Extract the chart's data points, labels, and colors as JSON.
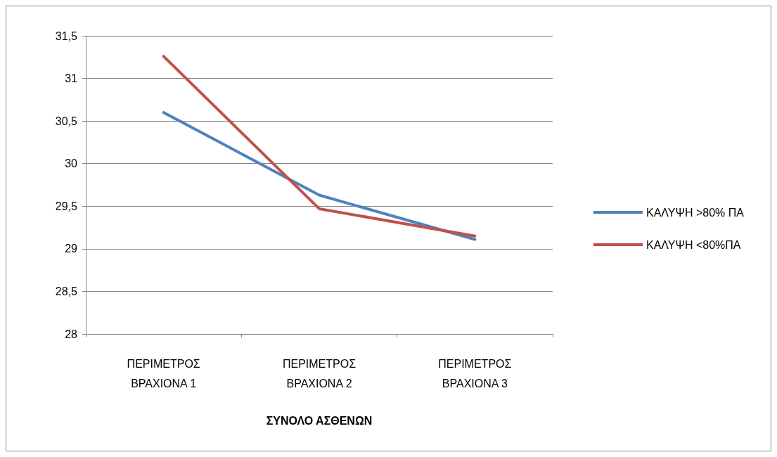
{
  "chart_data": {
    "type": "line",
    "xlabel": "ΣΥΝΟΛΟ ΑΣΘΕΝΩΝ",
    "categories": [
      "ΠΕΡΙΜΕΤΡΟΣ ΒΡΑΧΙΟΝΑ 1",
      "ΠΕΡΙΜΕΤΡΟΣ ΒΡΑΧΙΟΝΑ 2",
      "ΠΕΡΙΜΕΤΡΟΣ ΒΡΑΧΙΟΝΑ 3"
    ],
    "series": [
      {
        "name": "ΚΑΛΥΨΗ >80% ΠΑ",
        "color": "#4f81bd",
        "values": [
          30.6,
          29.63,
          29.11
        ]
      },
      {
        "name": "ΚΑΛΥΨΗ <80%ΠΑ",
        "color": "#c0504d",
        "values": [
          31.26,
          29.47,
          29.15
        ]
      }
    ],
    "ylim": [
      28,
      31.5
    ],
    "yticks": [
      28,
      {
        "value": 28.5,
        "label": "28,5"
      },
      29,
      {
        "value": 29.5,
        "label": "29,5"
      },
      30,
      {
        "value": 30.5,
        "label": "30,5"
      },
      31,
      {
        "value": 31.5,
        "label": "31,5"
      }
    ],
    "grid": "y",
    "legend": "right",
    "marker": "none",
    "line_style": "solid"
  }
}
